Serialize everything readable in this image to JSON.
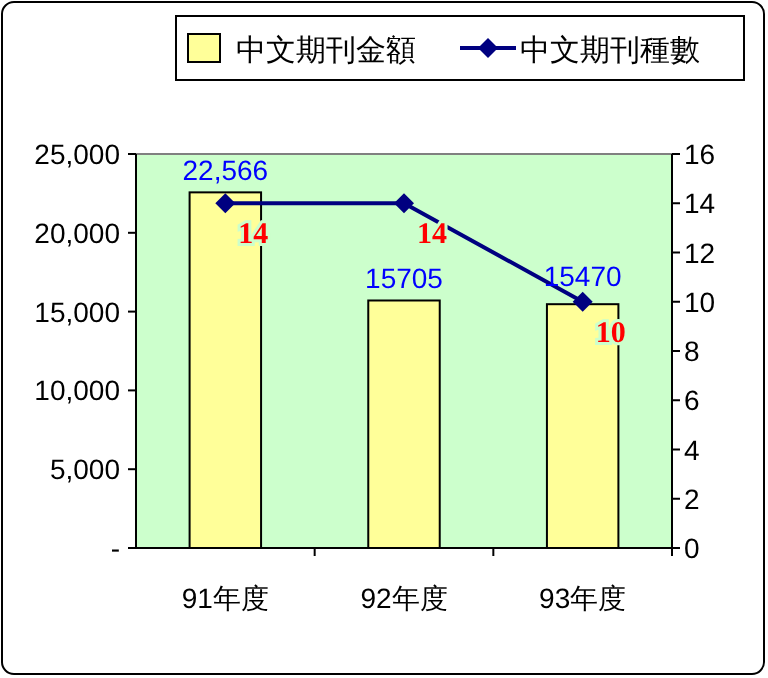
{
  "chart_data": {
    "type": "bar",
    "categories": [
      "91年度",
      "92年度",
      "93年度"
    ],
    "series": [
      {
        "name": "中文期刊金額",
        "color": "#ffff99",
        "values": [
          22566,
          15705,
          15470
        ],
        "value_labels": [
          "22,566",
          "15705",
          "15470"
        ]
      },
      {
        "name": "中文期刊種數",
        "type": "line",
        "axis": "y2",
        "color": "#000080",
        "values": [
          14,
          14,
          10
        ],
        "value_labels": [
          "14",
          "14",
          "10"
        ],
        "marker": "diamond",
        "line_style": "solid"
      }
    ],
    "ylim": [
      0,
      25000
    ],
    "yticks": [
      {
        "value": 0,
        "label": "-"
      },
      {
        "value": 5000,
        "label": "5,000"
      },
      {
        "value": 10000,
        "label": "10,000"
      },
      {
        "value": 15000,
        "label": "15,000"
      },
      {
        "value": 20000,
        "label": "20,000"
      },
      {
        "value": 25000,
        "label": "25,000"
      }
    ],
    "y2lim": [
      0,
      16
    ],
    "y2ticks": [
      0,
      2,
      4,
      6,
      8,
      10,
      12,
      14,
      16
    ],
    "legend": "top",
    "grid": false
  }
}
